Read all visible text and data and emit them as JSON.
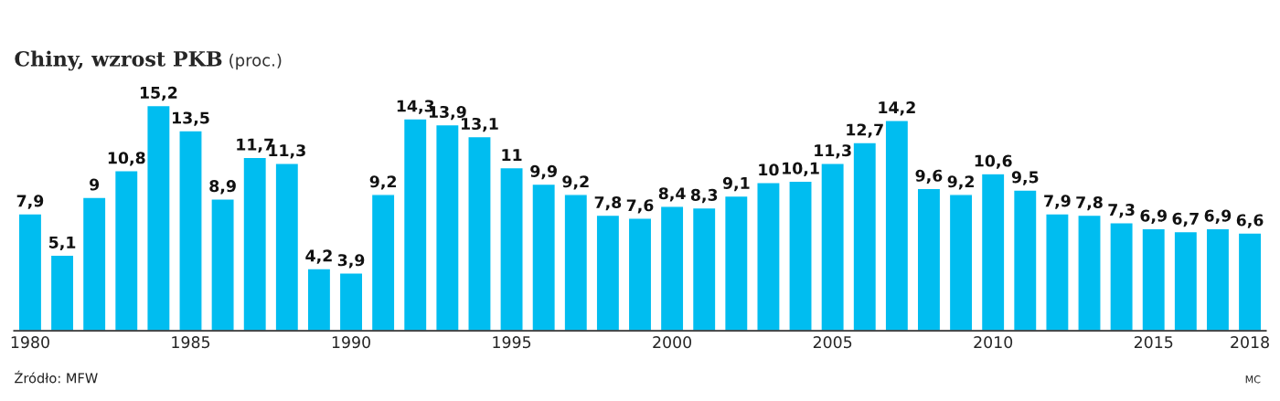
{
  "chart_data": {
    "type": "bar",
    "title": "Chiny, wzrost PKB",
    "subtitle": "(proc.)",
    "categories": [
      "1980",
      null,
      null,
      null,
      null,
      "1985",
      null,
      null,
      null,
      null,
      "1990",
      null,
      null,
      null,
      null,
      "1995",
      null,
      null,
      null,
      null,
      "2000",
      null,
      null,
      null,
      null,
      "2005",
      null,
      null,
      null,
      null,
      "2010",
      null,
      null,
      null,
      null,
      "2015",
      null,
      null,
      "2018"
    ],
    "values": [
      7.9,
      5.1,
      9,
      10.8,
      15.2,
      13.5,
      8.9,
      11.7,
      11.3,
      4.2,
      3.9,
      9.2,
      14.3,
      13.9,
      13.1,
      11,
      9.9,
      9.2,
      7.8,
      7.6,
      8.4,
      8.3,
      9.1,
      10,
      10.1,
      11.3,
      12.7,
      14.2,
      9.6,
      9.2,
      10.6,
      9.5,
      7.9,
      7.8,
      7.3,
      6.9,
      6.7,
      6.9,
      6.6
    ],
    "value_labels": [
      "7,9",
      "5,1",
      "9",
      "10,8",
      "15,2",
      "13,5",
      "8,9",
      "11,7",
      "11,3",
      "4,2",
      "3,9",
      "9,2",
      "14,3",
      "13,9",
      "13,1",
      "11",
      "9,9",
      "9,2",
      "7,8",
      "7,6",
      "8,4",
      "8,3",
      "9,1",
      "10",
      "10,1",
      "11,3",
      "12,7",
      "14,2",
      "9,6",
      "9,2",
      "10,6",
      "9,5",
      "7,9",
      "7,8",
      "7,3",
      "6,9",
      "6,7",
      "6,9",
      "6,6"
    ],
    "color": "#00bdf0",
    "grid": false,
    "legend": false,
    "annotations": [
      "Źródło: MFW",
      "MC"
    ]
  }
}
